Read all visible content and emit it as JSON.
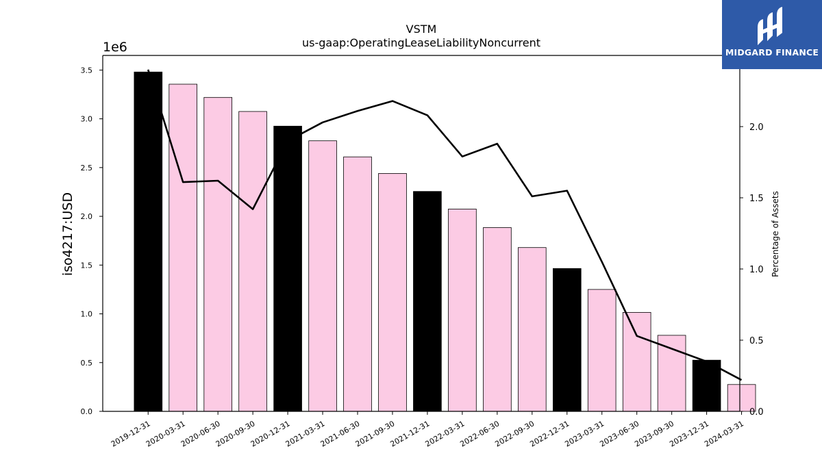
{
  "chart_data": {
    "type": "bar",
    "title": "VSTM",
    "subtitle": "us-gaap:OperatingLeaseLiabilityNoncurrent",
    "ylabel": "iso4217:USD",
    "y_multiplier_label": "1e6",
    "y2label": "Percentage of Assets",
    "categories": [
      "2019-12-31",
      "2020-03-31",
      "2020-06-30",
      "2020-09-30",
      "2020-12-31",
      "2021-03-31",
      "2021-06-30",
      "2021-09-30",
      "2021-12-31",
      "2022-03-31",
      "2022-06-30",
      "2022-09-30",
      "2022-12-31",
      "2023-03-31",
      "2023-06-30",
      "2023-09-30",
      "2023-12-31",
      "2024-03-31"
    ],
    "values": [
      3480000,
      3355000,
      3220000,
      3075000,
      2925000,
      2775000,
      2610000,
      2440000,
      2255000,
      2075000,
      1885000,
      1680000,
      1465000,
      1250000,
      1015000,
      780000,
      525000,
      275000
    ],
    "highlight_indices": [
      0,
      4,
      8,
      12,
      16
    ],
    "bar_color": "#fccbe4",
    "highlight_color": "#000000",
    "line_series": {
      "name": "Percentage of Assets",
      "values": [
        2.4,
        1.61,
        1.62,
        1.42,
        1.9,
        2.03,
        2.11,
        2.18,
        2.08,
        1.79,
        1.88,
        1.51,
        1.55,
        1.05,
        0.53,
        0.44,
        0.35,
        0.22
      ],
      "color": "#000000"
    },
    "ylim": [
      0,
      3650000
    ],
    "y_ticks": [
      0,
      500000,
      1000000,
      1500000,
      2000000,
      2500000,
      3000000,
      3500000
    ],
    "y_tick_labels": [
      "0.0",
      "0.5",
      "1.0",
      "1.5",
      "2.0",
      "2.5",
      "3.0",
      "3.5"
    ],
    "y2lim": [
      0,
      2.5
    ],
    "y2_ticks": [
      0,
      0.5,
      1.0,
      1.5,
      2.0
    ],
    "y2_tick_labels": [
      "0.0",
      "0.5",
      "1.0",
      "1.5",
      "2.0"
    ],
    "grid": false
  },
  "logo": {
    "text": "MIDGARD FINANCE",
    "color": "#2e5aa8"
  }
}
